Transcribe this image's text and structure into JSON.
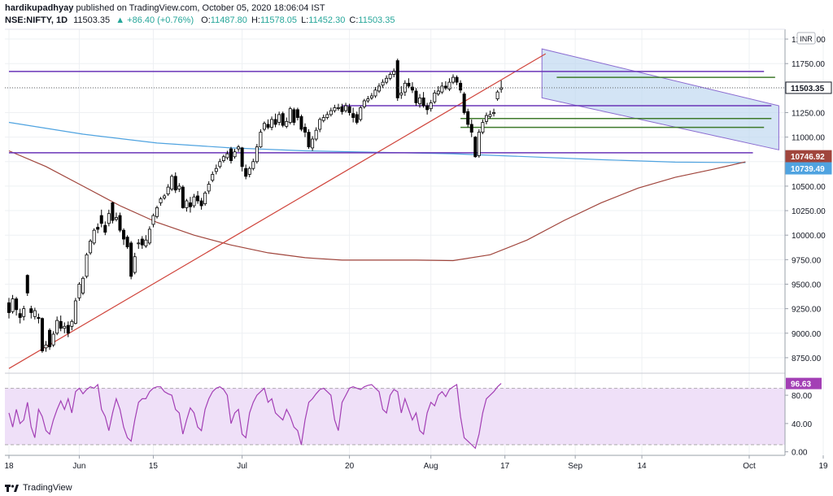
{
  "header": {
    "author": "hardikupadhyay",
    "published_text": "published on TradingView.com, October 05, 2020 18:06:04 IST",
    "symbol": "NSE:NIFTY, 1D",
    "last": "11503.35",
    "change": "▲ +86.40 (+0.76%)",
    "o_label": "O:",
    "o": "11487.80",
    "h_label": "H:",
    "h": "11578.05",
    "l_label": "L:",
    "l": "11452.30",
    "c_label": "C:",
    "c": "11503.35"
  },
  "footer": {
    "brand": "TradingView",
    "logo_icon": "tradingview-logo-icon"
  },
  "colors": {
    "up_candle": "#ffffff",
    "down_candle": "#000000",
    "ma_short": "#4fa3e0",
    "ma_long": "#a0453c",
    "trendline": "#d0453c",
    "horizontal": "#6a35b8",
    "green_line": "#3e7a2b",
    "channel_fill": "#bcd6f0",
    "rsi_line": "#a33fb5",
    "rsi_fill": "#efe0f8"
  },
  "chart_data": {
    "type": "candlestick",
    "currency": "INR",
    "y_ticks": [
      8750,
      9000,
      9250,
      9500,
      9750,
      10000,
      10250,
      10500,
      10750,
      11000,
      11250,
      11500,
      11750,
      12000
    ],
    "y_tick_labels": [
      "8750.00",
      "9000.00",
      "9250.00",
      "9500.00",
      "9750.00",
      "10000.00",
      "10250.00",
      "10500.00",
      "10750.00",
      "11000.00",
      "11250.00",
      "11500.00",
      "11750.00",
      "12000.00"
    ],
    "ylim": [
      8600,
      12100
    ],
    "x_labels": [
      "18",
      "Jun",
      "15",
      "Jul",
      "20",
      "Aug",
      "17",
      "Sep",
      "14",
      "Oct",
      "19"
    ],
    "x_label_index": [
      0,
      19,
      39,
      63,
      92,
      114,
      134,
      153,
      171,
      200,
      220
    ],
    "price_labels": [
      {
        "value": 11503.35,
        "text": "11503.35",
        "bg": "#ffffff",
        "fg": "#131722"
      },
      {
        "value": 10746.92,
        "text": "10746.92",
        "bg": "#a0453c",
        "fg": "#ffffff"
      },
      {
        "value": 10739.49,
        "text": "10739.49",
        "bg": "#4fa3e0",
        "fg": "#ffffff"
      }
    ],
    "candles": [
      {
        "o": 9310,
        "c": 9210,
        "h": 9360,
        "l": 9150
      },
      {
        "o": 9220,
        "c": 9350,
        "h": 9390,
        "l": 9200
      },
      {
        "o": 9350,
        "c": 9240,
        "h": 9370,
        "l": 9180
      },
      {
        "o": 9200,
        "c": 9160,
        "h": 9250,
        "l": 9100
      },
      {
        "o": 9170,
        "c": 9250,
        "h": 9280,
        "l": 9130
      },
      {
        "o": 9590,
        "c": 9410,
        "h": 9600,
        "l": 9380
      },
      {
        "o": 9250,
        "c": 9210,
        "h": 9280,
        "l": 9150
      },
      {
        "o": 9170,
        "c": 9230,
        "h": 9260,
        "l": 9140
      },
      {
        "o": 9160,
        "c": 9150,
        "h": 9200,
        "l": 9100
      },
      {
        "o": 9150,
        "c": 8820,
        "h": 9160,
        "l": 8800
      },
      {
        "o": 8850,
        "c": 8880,
        "h": 8920,
        "l": 8810
      },
      {
        "o": 9030,
        "c": 8860,
        "h": 9050,
        "l": 8830
      },
      {
        "o": 8880,
        "c": 8990,
        "h": 9020,
        "l": 8860
      },
      {
        "o": 9000,
        "c": 9130,
        "h": 9170,
        "l": 8980
      },
      {
        "o": 9120,
        "c": 9050,
        "h": 9180,
        "l": 9020
      },
      {
        "o": 9050,
        "c": 9070,
        "h": 9110,
        "l": 9000
      },
      {
        "o": 9080,
        "c": 9000,
        "h": 9120,
        "l": 8960
      },
      {
        "o": 9070,
        "c": 9120,
        "h": 9140,
        "l": 9030
      },
      {
        "o": 9100,
        "c": 9330,
        "h": 9360,
        "l": 9090
      },
      {
        "o": 9360,
        "c": 9500,
        "h": 9520,
        "l": 9330
      },
      {
        "o": 9410,
        "c": 9560,
        "h": 9580,
        "l": 9390
      },
      {
        "o": 9580,
        "c": 9800,
        "h": 9820,
        "l": 9560
      },
      {
        "o": 9820,
        "c": 9940,
        "h": 9960,
        "l": 9800
      },
      {
        "o": 9920,
        "c": 10050,
        "h": 10070,
        "l": 9900
      },
      {
        "o": 10080,
        "c": 10060,
        "h": 10120,
        "l": 10020
      },
      {
        "o": 10200,
        "c": 10120,
        "h": 10260,
        "l": 10080
      },
      {
        "o": 10100,
        "c": 10030,
        "h": 10140,
        "l": 10000
      },
      {
        "o": 10120,
        "c": 10220,
        "h": 10260,
        "l": 10090
      },
      {
        "o": 10330,
        "c": 10150,
        "h": 10340,
        "l": 10120
      },
      {
        "o": 10160,
        "c": 10180,
        "h": 10230,
        "l": 10140
      },
      {
        "o": 10200,
        "c": 10050,
        "h": 10230,
        "l": 10030
      },
      {
        "o": 10050,
        "c": 9960,
        "h": 10070,
        "l": 9900
      },
      {
        "o": 9980,
        "c": 9880,
        "h": 10000,
        "l": 9860
      },
      {
        "o": 9920,
        "c": 9580,
        "h": 9940,
        "l": 9550
      },
      {
        "o": 9620,
        "c": 9780,
        "h": 9820,
        "l": 9600
      },
      {
        "o": 9920,
        "c": 9920,
        "h": 9960,
        "l": 9860
      },
      {
        "o": 9960,
        "c": 9900,
        "h": 9990,
        "l": 9860
      },
      {
        "o": 9890,
        "c": 9950,
        "h": 10000,
        "l": 9870
      },
      {
        "o": 9920,
        "c": 10060,
        "h": 10090,
        "l": 9900
      },
      {
        "o": 10110,
        "c": 10200,
        "h": 10220,
        "l": 10080
      },
      {
        "o": 10190,
        "c": 10280,
        "h": 10300,
        "l": 10170
      },
      {
        "o": 10330,
        "c": 10370,
        "h": 10390,
        "l": 10300
      },
      {
        "o": 10380,
        "c": 10400,
        "h": 10420,
        "l": 10360
      },
      {
        "o": 10420,
        "c": 10490,
        "h": 10520,
        "l": 10400
      },
      {
        "o": 10470,
        "c": 10600,
        "h": 10620,
        "l": 10450
      },
      {
        "o": 10600,
        "c": 10460,
        "h": 10640,
        "l": 10430
      },
      {
        "o": 10470,
        "c": 10500,
        "h": 10530,
        "l": 10440
      },
      {
        "o": 10490,
        "c": 10280,
        "h": 10510,
        "l": 10270
      },
      {
        "o": 10280,
        "c": 10350,
        "h": 10370,
        "l": 10240
      },
      {
        "o": 10330,
        "c": 10290,
        "h": 10390,
        "l": 10230
      },
      {
        "o": 10300,
        "c": 10390,
        "h": 10420,
        "l": 10280
      },
      {
        "o": 10400,
        "c": 10350,
        "h": 10450,
        "l": 10320
      },
      {
        "o": 10350,
        "c": 10300,
        "h": 10380,
        "l": 10260
      },
      {
        "o": 10320,
        "c": 10430,
        "h": 10450,
        "l": 10300
      },
      {
        "o": 10450,
        "c": 10520,
        "h": 10550,
        "l": 10420
      },
      {
        "o": 10560,
        "c": 10620,
        "h": 10650,
        "l": 10540
      },
      {
        "o": 10650,
        "c": 10680,
        "h": 10720,
        "l": 10620
      },
      {
        "o": 10700,
        "c": 10750,
        "h": 10780,
        "l": 10680
      },
      {
        "o": 10760,
        "c": 10800,
        "h": 10820,
        "l": 10740
      },
      {
        "o": 10790,
        "c": 10830,
        "h": 10860,
        "l": 10770
      },
      {
        "o": 10880,
        "c": 10760,
        "h": 10900,
        "l": 10730
      },
      {
        "o": 10800,
        "c": 10850,
        "h": 10880,
        "l": 10780
      },
      {
        "o": 10880,
        "c": 10900,
        "h": 10920,
        "l": 10850
      },
      {
        "o": 10890,
        "c": 10700,
        "h": 10900,
        "l": 10650
      },
      {
        "o": 10680,
        "c": 10600,
        "h": 10720,
        "l": 10570
      },
      {
        "o": 10620,
        "c": 10680,
        "h": 10700,
        "l": 10590
      },
      {
        "o": 10680,
        "c": 10750,
        "h": 10780,
        "l": 10660
      },
      {
        "o": 10750,
        "c": 10900,
        "h": 10930,
        "l": 10730
      },
      {
        "o": 10900,
        "c": 11050,
        "h": 11080,
        "l": 10890
      },
      {
        "o": 11080,
        "c": 11140,
        "h": 11160,
        "l": 11060
      },
      {
        "o": 11130,
        "c": 11100,
        "h": 11180,
        "l": 11080
      },
      {
        "o": 11100,
        "c": 11180,
        "h": 11210,
        "l": 11070
      },
      {
        "o": 11180,
        "c": 11130,
        "h": 11240,
        "l": 11100
      },
      {
        "o": 11150,
        "c": 11230,
        "h": 11260,
        "l": 11120
      },
      {
        "o": 11240,
        "c": 11120,
        "h": 11260,
        "l": 11100
      },
      {
        "o": 11110,
        "c": 11160,
        "h": 11200,
        "l": 11090
      },
      {
        "o": 11150,
        "c": 11290,
        "h": 11310,
        "l": 11130
      },
      {
        "o": 11280,
        "c": 11150,
        "h": 11300,
        "l": 11120
      },
      {
        "o": 11280,
        "c": 11200,
        "h": 11300,
        "l": 11170
      },
      {
        "o": 11210,
        "c": 11080,
        "h": 11230,
        "l": 11060
      },
      {
        "o": 11100,
        "c": 11050,
        "h": 11140,
        "l": 11000
      },
      {
        "o": 11050,
        "c": 10900,
        "h": 11080,
        "l": 10880
      },
      {
        "o": 10890,
        "c": 10980,
        "h": 11010,
        "l": 10860
      },
      {
        "o": 10980,
        "c": 11070,
        "h": 11100,
        "l": 10960
      },
      {
        "o": 11080,
        "c": 11180,
        "h": 11200,
        "l": 11050
      },
      {
        "o": 11170,
        "c": 11200,
        "h": 11230,
        "l": 11150
      },
      {
        "o": 11200,
        "c": 11230,
        "h": 11260,
        "l": 11180
      },
      {
        "o": 11230,
        "c": 11270,
        "h": 11300,
        "l": 11210
      },
      {
        "o": 11270,
        "c": 11300,
        "h": 11330,
        "l": 11250
      },
      {
        "o": 11300,
        "c": 11300,
        "h": 11340,
        "l": 11270
      },
      {
        "o": 11310,
        "c": 11260,
        "h": 11340,
        "l": 11230
      },
      {
        "o": 11270,
        "c": 11320,
        "h": 11350,
        "l": 11250
      },
      {
        "o": 11310,
        "c": 11250,
        "h": 11340,
        "l": 11220
      },
      {
        "o": 11240,
        "c": 11200,
        "h": 11300,
        "l": 11150
      },
      {
        "o": 11230,
        "c": 11150,
        "h": 11260,
        "l": 11130
      },
      {
        "o": 11180,
        "c": 11300,
        "h": 11320,
        "l": 11160
      },
      {
        "o": 11310,
        "c": 11370,
        "h": 11390,
        "l": 11290
      },
      {
        "o": 11370,
        "c": 11390,
        "h": 11420,
        "l": 11350
      },
      {
        "o": 11400,
        "c": 11420,
        "h": 11450,
        "l": 11380
      },
      {
        "o": 11420,
        "c": 11480,
        "h": 11510,
        "l": 11400
      },
      {
        "o": 11470,
        "c": 11520,
        "h": 11550,
        "l": 11450
      },
      {
        "o": 11530,
        "c": 11560,
        "h": 11590,
        "l": 11500
      },
      {
        "o": 11560,
        "c": 11600,
        "h": 11630,
        "l": 11540
      },
      {
        "o": 11600,
        "c": 11640,
        "h": 11660,
        "l": 11580
      },
      {
        "o": 11640,
        "c": 11670,
        "h": 11700,
        "l": 11610
      },
      {
        "o": 11780,
        "c": 11400,
        "h": 11800,
        "l": 11370
      },
      {
        "o": 11430,
        "c": 11450,
        "h": 11520,
        "l": 11390
      },
      {
        "o": 11460,
        "c": 11550,
        "h": 11580,
        "l": 11420
      },
      {
        "o": 11550,
        "c": 11520,
        "h": 11600,
        "l": 11500
      },
      {
        "o": 11510,
        "c": 11480,
        "h": 11560,
        "l": 11450
      },
      {
        "o": 11470,
        "c": 11350,
        "h": 11500,
        "l": 11320
      },
      {
        "o": 11340,
        "c": 11400,
        "h": 11440,
        "l": 11300
      },
      {
        "o": 11400,
        "c": 11320,
        "h": 11460,
        "l": 11300
      },
      {
        "o": 11320,
        "c": 11280,
        "h": 11350,
        "l": 11230
      },
      {
        "o": 11290,
        "c": 11350,
        "h": 11380,
        "l": 11260
      },
      {
        "o": 11360,
        "c": 11450,
        "h": 11480,
        "l": 11340
      },
      {
        "o": 11440,
        "c": 11470,
        "h": 11520,
        "l": 11420
      },
      {
        "o": 11460,
        "c": 11520,
        "h": 11560,
        "l": 11440
      },
      {
        "o": 11520,
        "c": 11500,
        "h": 11570,
        "l": 11480
      },
      {
        "o": 11490,
        "c": 11560,
        "h": 11600,
        "l": 11470
      },
      {
        "o": 11560,
        "c": 11610,
        "h": 11640,
        "l": 11540
      },
      {
        "o": 11610,
        "c": 11560,
        "h": 11630,
        "l": 11530
      },
      {
        "o": 11550,
        "c": 11480,
        "h": 11580,
        "l": 11450
      },
      {
        "o": 11440,
        "c": 11250,
        "h": 11460,
        "l": 11230
      },
      {
        "o": 11260,
        "c": 11130,
        "h": 11290,
        "l": 11100
      },
      {
        "o": 11130,
        "c": 11050,
        "h": 11180,
        "l": 11000
      },
      {
        "o": 11000,
        "c": 10800,
        "h": 11010,
        "l": 10790
      },
      {
        "o": 10810,
        "c": 11050,
        "h": 11080,
        "l": 10790
      },
      {
        "o": 11050,
        "c": 11150,
        "h": 11180,
        "l": 11030
      },
      {
        "o": 11160,
        "c": 11220,
        "h": 11250,
        "l": 11130
      },
      {
        "o": 11210,
        "c": 11230,
        "h": 11270,
        "l": 11190
      },
      {
        "o": 11240,
        "c": 11250,
        "h": 11290,
        "l": 11210
      },
      {
        "o": 11390,
        "c": 11460,
        "h": 11480,
        "l": 11370
      },
      {
        "o": 11487.8,
        "c": 11503.35,
        "h": 11578.05,
        "l": 11452.3
      }
    ],
    "ma_short": [
      [
        0,
        11150
      ],
      [
        20,
        11030
      ],
      [
        40,
        10940
      ],
      [
        60,
        10890
      ],
      [
        80,
        10860
      ],
      [
        100,
        10845
      ],
      [
        120,
        10830
      ],
      [
        140,
        10800
      ],
      [
        160,
        10770
      ],
      [
        180,
        10745
      ],
      [
        199,
        10739.49
      ]
    ],
    "ma_long": [
      [
        0,
        10860
      ],
      [
        10,
        10700
      ],
      [
        20,
        10500
      ],
      [
        30,
        10300
      ],
      [
        40,
        10130
      ],
      [
        50,
        10000
      ],
      [
        60,
        9900
      ],
      [
        70,
        9820
      ],
      [
        80,
        9770
      ],
      [
        90,
        9745
      ],
      [
        100,
        9745
      ],
      [
        110,
        9745
      ],
      [
        120,
        9740
      ],
      [
        130,
        9800
      ],
      [
        140,
        9950
      ],
      [
        150,
        10150
      ],
      [
        160,
        10330
      ],
      [
        170,
        10480
      ],
      [
        180,
        10590
      ],
      [
        190,
        10670
      ],
      [
        199,
        10746.92
      ]
    ],
    "trendline": [
      [
        0,
        8640
      ],
      [
        145,
        11850
      ]
    ],
    "horizontal_lines": [
      {
        "from": 0,
        "to": 204,
        "value": 11670,
        "color": "#6a35b8"
      },
      {
        "from": 0,
        "to": 201,
        "value": 10840,
        "color": "#6a35b8"
      },
      {
        "from": 90,
        "to": 206,
        "value": 11320,
        "color": "#6a35b8"
      },
      {
        "from": 148,
        "to": 207,
        "value": 11610,
        "color": "#3e7a2b"
      },
      {
        "from": 122,
        "to": 206,
        "value": 11190,
        "color": "#3e7a2b"
      },
      {
        "from": 122,
        "to": 204,
        "value": 11100,
        "color": "#3e7a2b"
      }
    ],
    "channel": [
      [
        144,
        11900
      ],
      [
        208,
        11320
      ],
      [
        208,
        10870
      ],
      [
        144,
        11400
      ]
    ],
    "rsi": {
      "ticks": [
        0,
        40,
        80
      ],
      "tick_labels": [
        "0.00",
        "40.00",
        "80.00"
      ],
      "band": [
        10,
        90
      ],
      "ylim": [
        -5,
        110
      ],
      "last_label": "96.63",
      "values": [
        55,
        35,
        60,
        40,
        45,
        70,
        35,
        20,
        60,
        50,
        30,
        25,
        45,
        60,
        72,
        60,
        75,
        55,
        85,
        90,
        82,
        88,
        92,
        90,
        95,
        60,
        50,
        30,
        55,
        75,
        60,
        35,
        20,
        15,
        45,
        70,
        75,
        75,
        85,
        90,
        92,
        92,
        85,
        82,
        80,
        60,
        55,
        25,
        45,
        62,
        55,
        35,
        30,
        60,
        75,
        85,
        90,
        92,
        88,
        80,
        40,
        55,
        60,
        25,
        20,
        55,
        70,
        80,
        85,
        90,
        70,
        75,
        55,
        50,
        45,
        60,
        50,
        35,
        30,
        10,
        45,
        70,
        75,
        82,
        88,
        90,
        85,
        80,
        45,
        30,
        70,
        80,
        90,
        92,
        90,
        88,
        92,
        94,
        95,
        90,
        85,
        60,
        55,
        80,
        88,
        85,
        55,
        75,
        60,
        45,
        55,
        30,
        25,
        55,
        70,
        65,
        80,
        85,
        78,
        88,
        92,
        95,
        50,
        20,
        15,
        10,
        5,
        25,
        55,
        75,
        80,
        85,
        92,
        96.63
      ]
    }
  }
}
